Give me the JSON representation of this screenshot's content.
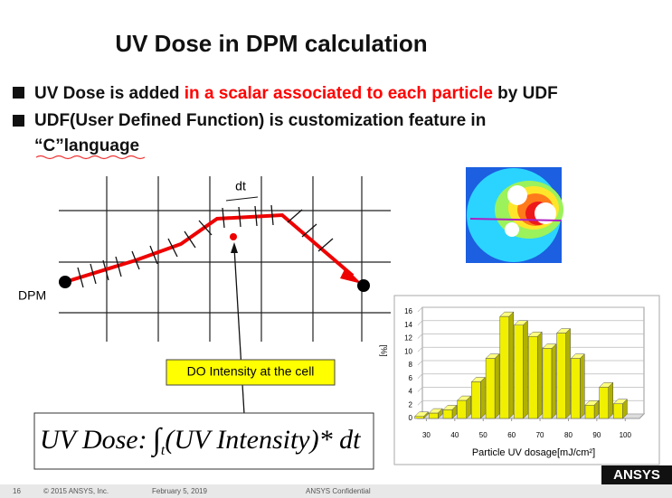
{
  "title": "UV Dose in DPM calculation",
  "bullets": [
    {
      "before": "UV Dose is added ",
      "highlight": "in a scalar associated to each particle",
      "after": " by UDF",
      "highlight_color": "#ff0000"
    },
    {
      "lines": [
        "UDF(User Defined Function) is customization feature in",
        "“C”language"
      ]
    }
  ],
  "diagram": {
    "dt_label": "dt",
    "start_label": "DPM",
    "callout": "DO Intensity at the cell"
  },
  "formula": {
    "lhs": "UV Dose:",
    "integral": "∫",
    "subscript": "t",
    "rhs": "(UV Intensity)* dt"
  },
  "chart_data": {
    "type": "bar",
    "x": [
      27.5,
      32.5,
      37.5,
      42.5,
      47.5,
      52.5,
      57.5,
      62.5,
      67.5,
      72.5,
      77.5,
      82.5,
      87.5,
      92.5,
      97.5
    ],
    "values": [
      0.3,
      0.8,
      1.3,
      2.7,
      5.5,
      9,
      15.3,
      14,
      12.3,
      10.5,
      12.8,
      9,
      2,
      4.7,
      2.2
    ],
    "color": "#f0f000",
    "xlim": [
      27,
      105
    ],
    "xticks": [
      30,
      40,
      50,
      60,
      70,
      80,
      90,
      100
    ],
    "ylim": [
      0,
      16
    ],
    "yticks": [
      0,
      2,
      4,
      6,
      8,
      10,
      12,
      14,
      16
    ],
    "ylabel": "[%]",
    "xlabel": "Particle UV dosage[mJ/cm²]",
    "grid": true
  },
  "footer": {
    "page": "16",
    "copyright": "© 2015 ANSYS, Inc.",
    "date": "February 5, 2019",
    "confidential": "ANSYS Confidential",
    "logo": "ANSYS"
  }
}
